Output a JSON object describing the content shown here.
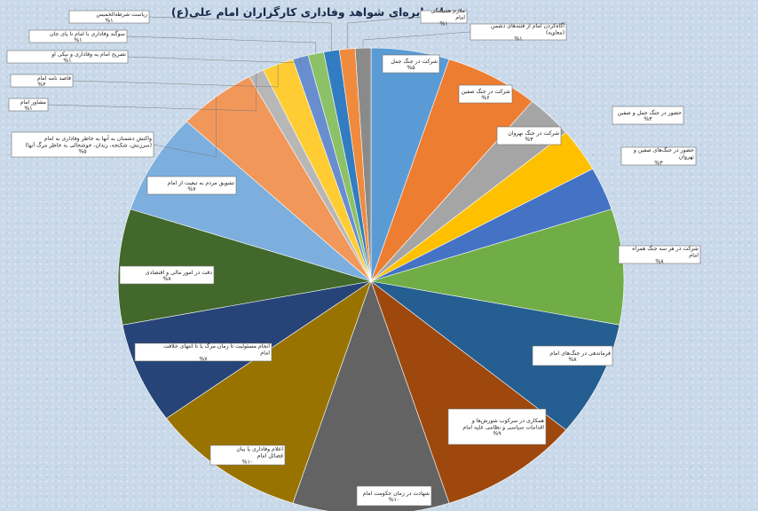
{
  "chart_data": {
    "type": "pie",
    "title": "نمودار دایره‌ای شواهد وفاداری کارگزاران امام علی(ع)",
    "legend": "none",
    "slices": [
      {
        "label": "شرکت در جنگ جمل",
        "value_label": "%۵",
        "value": 5,
        "color": "#5b9bd5"
      },
      {
        "label": "شرکت در جنگ صفین",
        "value_label": "%۶",
        "value": 6,
        "color": "#ed7d31"
      },
      {
        "label": "شرکت در جنگ نهروان",
        "value_label": "%۳",
        "value": 3,
        "color": "#a5a5a5"
      },
      {
        "label": "حضور در جنگ جمل و صفین",
        "value_label": "%۳",
        "value": 3,
        "color": "#ffc000"
      },
      {
        "label": "حضور در جنگ‌های صفین و نهروان",
        "value_label": "%۳",
        "value": 3,
        "color": "#4472c4"
      },
      {
        "label": "شرکت در هر سه جنگ همراه امام",
        "value_label": "%۸",
        "value": 8,
        "color": "#70ad47"
      },
      {
        "label": "فرماندهی در جنگ‌های امام",
        "value_label": "%۸",
        "value": 8,
        "color": "#255e91"
      },
      {
        "label": "همکاری در سرکوب شورش‌ها و اقدامات سیاسی و نظامی علیه امام",
        "value_label": "%۹",
        "value": 9,
        "color": "#9e480e"
      },
      {
        "label": "شهادت در زمان حکومت امام",
        "value_label": "%۱۰",
        "value": 10,
        "color": "#636363"
      },
      {
        "label": "اعلام وفاداری یا بیان فضائل امام",
        "value_label": "%۱۰",
        "value": 10,
        "color": "#997300"
      },
      {
        "label": "انجام مسئولیت تا زمان مرگ یا تا انتهای خلافت امام",
        "value_label": "%۷",
        "value": 7,
        "color": "#264478"
      },
      {
        "label": "دقت در امور مالی و اقتصادی",
        "value_label": "%۸",
        "value": 8,
        "color": "#43682b"
      },
      {
        "label": "تشویق مردم به تبعیت از امام",
        "value_label": "%۷",
        "value": 7,
        "color": "#7cafdd"
      },
      {
        "label": "واکنش دشمنان به آنها به خاطر وفاداری به امام (سرزنش، شکنجه، زندان، خوشحالی به خاطر مرگ آنها)",
        "value_label": "%۵",
        "value": 5,
        "color": "#f1975a"
      },
      {
        "label": "مشاور امام",
        "value_label": "%۱",
        "value": 1,
        "color": "#b7b7b7"
      },
      {
        "label": "قاصد نامه امام",
        "value_label": "%۲",
        "value": 2,
        "color": "#ffcd33"
      },
      {
        "label": "تصریح امام به وفاداری و نیکی او",
        "value_label": "%۱",
        "value": 1,
        "color": "#698ed0"
      },
      {
        "label": "سوگند وفاداری با امام تا پای جان",
        "value_label": "%۱",
        "value": 1,
        "color": "#8cc168"
      },
      {
        "label": "ریاست شرطةالخمیس",
        "value_label": "%۱",
        "value": 1,
        "color": "#327dc2"
      },
      {
        "label": "ملازم همیشگی امام",
        "value_label": "%۱",
        "value": 1,
        "color": "#f08a3c"
      },
      {
        "label": "آگاه‌کردن امام از فتنه‌های دشمن (معاویه)",
        "value_label": "%۱",
        "value": 1,
        "color": "#8a8a8a"
      }
    ]
  }
}
